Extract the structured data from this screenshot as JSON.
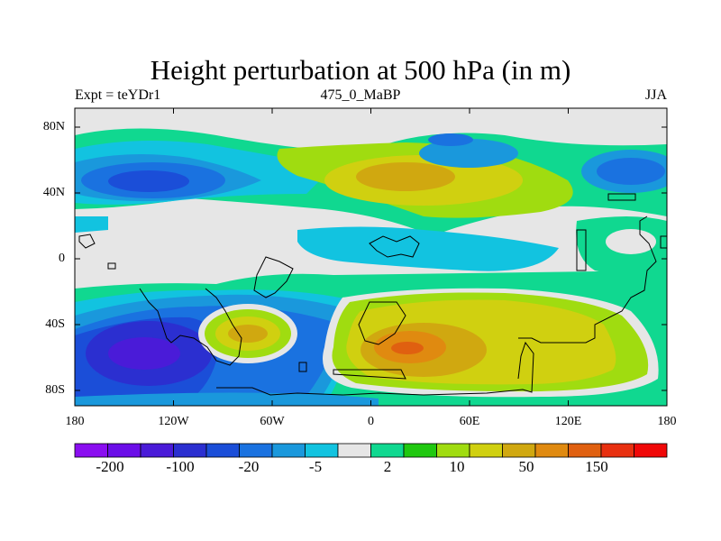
{
  "title": "Height perturbation at 500 hPa (in m)",
  "subtitle_left": "Expt = teYDr1",
  "subtitle_center": "475_0_MaBP",
  "subtitle_right": "JJA",
  "y_ticks": [
    "80N",
    "40N",
    "0",
    "40S",
    "80S"
  ],
  "x_ticks": [
    "180",
    "120W",
    "60W",
    "0",
    "60E",
    "120E",
    "180"
  ],
  "colorbar": {
    "colors": [
      "#8a0ef0",
      "#6b0ee8",
      "#4a1bd8",
      "#2b2fd0",
      "#1b4ed8",
      "#1a72e0",
      "#1a98dc",
      "#12c3e0",
      "#e6e6e6",
      "#10d890",
      "#20c810",
      "#a0dc10",
      "#d0d010",
      "#d0a810",
      "#e08a10",
      "#e06010",
      "#e83010",
      "#f00808"
    ],
    "labels": [
      "-200",
      "-100",
      "-20",
      "-5",
      "2",
      "10",
      "50",
      "150"
    ]
  },
  "legend_colors": {
    "land_outline": "#000000",
    "neutral": "#e6e6e6"
  }
}
